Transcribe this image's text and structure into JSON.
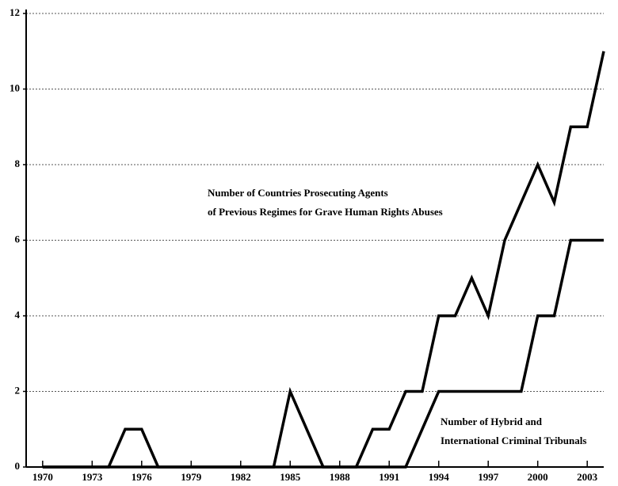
{
  "chart_data": {
    "type": "line",
    "x": [
      1970,
      1971,
      1972,
      1973,
      1974,
      1975,
      1976,
      1977,
      1978,
      1979,
      1980,
      1981,
      1982,
      1983,
      1984,
      1985,
      1986,
      1987,
      1988,
      1989,
      1990,
      1991,
      1992,
      1993,
      1994,
      1995,
      1996,
      1997,
      1998,
      1999,
      2000,
      2001,
      2002,
      2003,
      2004
    ],
    "series": [
      {
        "color": "#000000",
        "values": [
          0,
          0,
          0,
          0,
          0,
          1,
          1,
          0,
          0,
          0,
          0,
          0,
          0,
          0,
          0,
          2,
          1,
          0,
          0,
          0,
          1,
          1,
          2,
          2,
          4,
          4,
          5,
          4,
          6,
          7,
          8,
          7,
          9,
          9,
          11
        ]
      },
      {
        "color": "#000000",
        "values": [
          0,
          0,
          0,
          0,
          0,
          0,
          0,
          0,
          0,
          0,
          0,
          0,
          0,
          0,
          0,
          0,
          0,
          0,
          0,
          0,
          0,
          0,
          0,
          1,
          2,
          2,
          2,
          2,
          2,
          2,
          4,
          4,
          6,
          6,
          6
        ]
      }
    ],
    "annotations": [
      {
        "lines": [
          "Number of Countries Prosecuting Agents",
          "of Previous Regimes for Grave Human Rights Abuses"
        ]
      },
      {
        "lines": [
          "Number of Hybrid and",
          "International Criminal Tribunals"
        ]
      }
    ],
    "xlim": [
      1969,
      2004
    ],
    "xticks": [
      1970,
      1973,
      1976,
      1979,
      1982,
      1985,
      1988,
      1991,
      1994,
      1997,
      2000,
      2003
    ],
    "ylim": [
      0,
      12
    ],
    "yticks": [
      0,
      2,
      4,
      6,
      8,
      10,
      12
    ],
    "grid": true
  }
}
